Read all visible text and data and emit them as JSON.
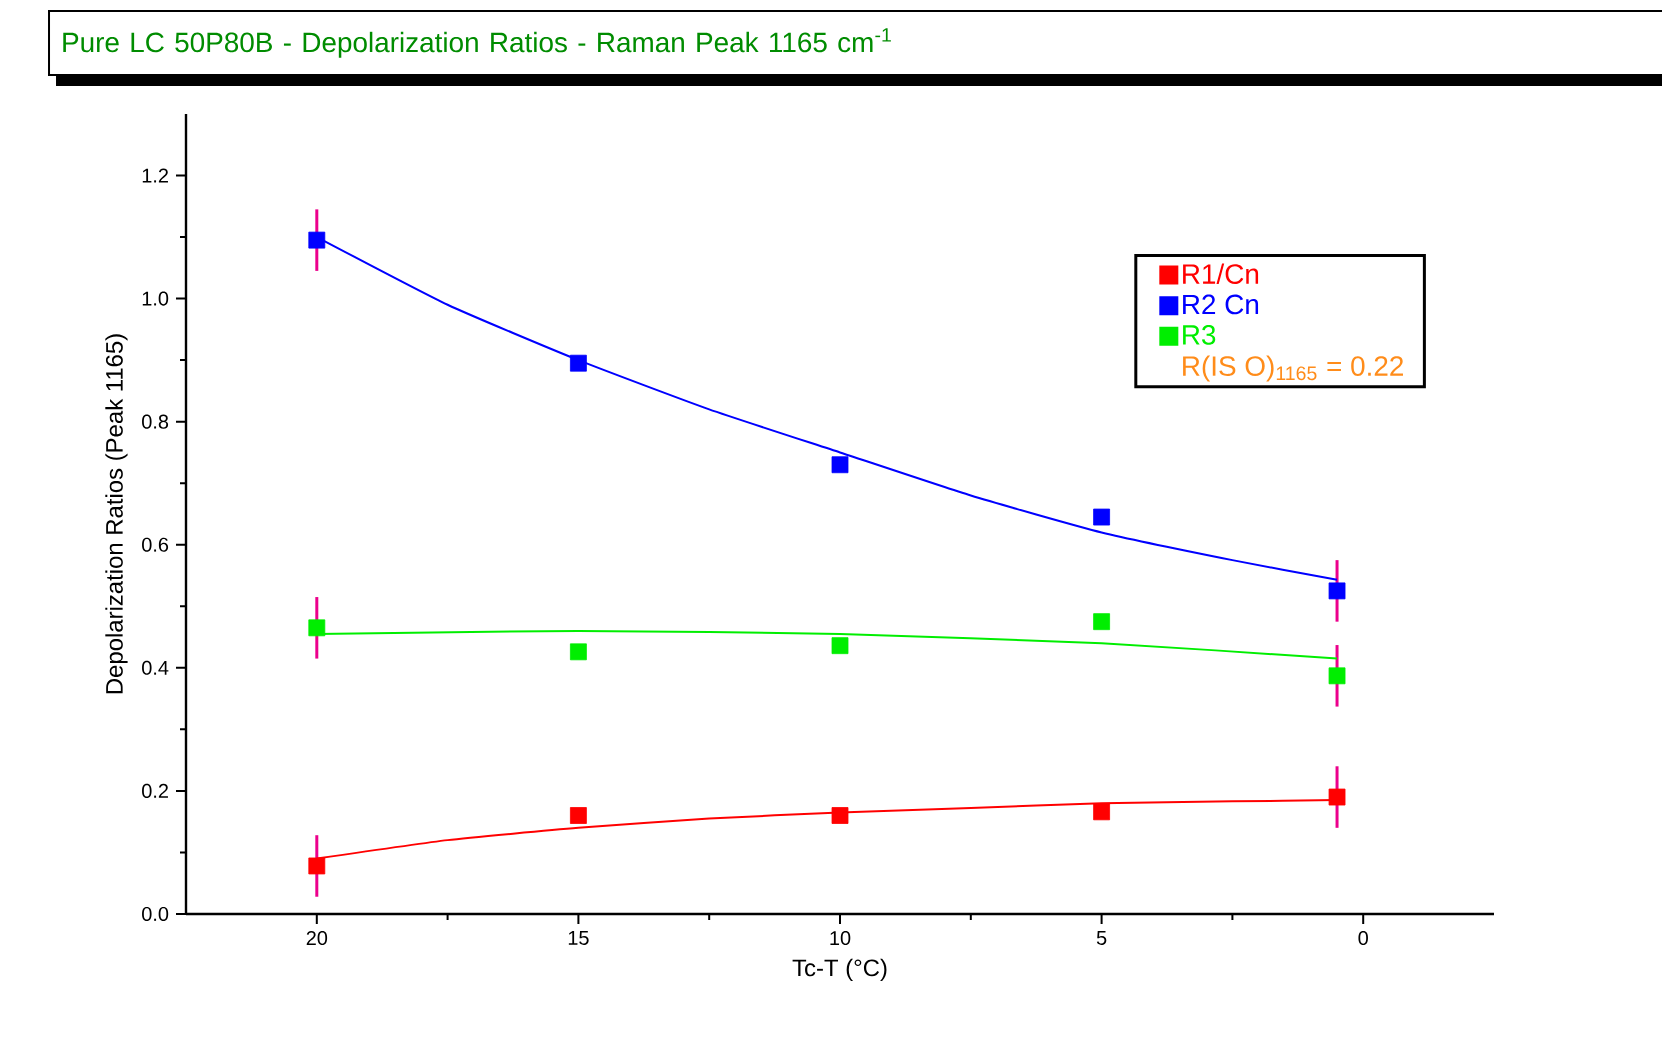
{
  "chart_data": {
    "type": "scatter",
    "title": "Pure LC 50P80B - Depolarization Ratios - Raman Peak 1165 cm$^{-1}$",
    "xlabel": "Tc-T (°C)",
    "ylabel": "Depolarization Ratios (Peak 1165)",
    "xlim": [
      22.5,
      -2.5
    ],
    "xticks": [
      20,
      15,
      10,
      5,
      0
    ],
    "ylim": [
      0,
      1.3
    ],
    "yticks": [
      {
        "value": 0,
        "label": "0.0"
      },
      {
        "value": 0.2,
        "label": "0.2"
      },
      {
        "value": 0.4,
        "label": "0.4"
      },
      {
        "value": 0.6,
        "label": "0.6"
      },
      {
        "value": 0.8,
        "label": "0.8"
      },
      {
        "value": 1.0,
        "label": "1.0"
      },
      {
        "value": 1.2,
        "label": "1.2"
      }
    ],
    "marker": "square",
    "legend": "top right",
    "grid": false,
    "annotations": [
      "R(IS O)$_{1165}$ = 0.22"
    ],
    "x": [
      20,
      15,
      10,
      5,
      0.5
    ],
    "series": [
      {
        "name": "R1/Cn",
        "color": "#ff0000",
        "values": [
          0.078,
          0.16,
          0.16,
          0.166,
          0.19
        ],
        "errors": [
          0.05,
          null,
          null,
          null,
          0.05
        ]
      },
      {
        "name": "R2 Cn",
        "color": "#0000ff",
        "values": [
          1.095,
          0.895,
          0.73,
          0.645,
          0.525
        ],
        "errors": [
          0.05,
          null,
          null,
          null,
          0.05
        ]
      },
      {
        "name": "R3",
        "color": "#00ee00",
        "values": [
          0.465,
          0.426,
          0.436,
          0.475,
          0.387
        ],
        "errors": [
          0.05,
          null,
          null,
          null,
          0.05
        ]
      },
      {
        "type": "line",
        "color": "#ff0000",
        "marker": "none",
        "x": [
          20,
          17.5,
          15,
          12.5,
          10,
          7.5,
          5,
          2.5,
          0.5
        ],
        "values": [
          0.09,
          0.12,
          0.14,
          0.155,
          0.165,
          0.172,
          0.18,
          0.183,
          0.185
        ]
      },
      {
        "type": "line",
        "color": "#0000ff",
        "marker": "none",
        "x": [
          20,
          17.5,
          15,
          12.5,
          10,
          7.5,
          5,
          2.5,
          0.5
        ],
        "values": [
          1.1,
          0.99,
          0.9,
          0.82,
          0.75,
          0.68,
          0.62,
          0.575,
          0.543
        ]
      },
      {
        "type": "line",
        "color": "#00ee00",
        "marker": "none",
        "x": [
          20,
          15,
          10,
          5,
          0.5
        ],
        "values": [
          0.455,
          0.46,
          0.455,
          0.44,
          0.415
        ]
      }
    ]
  }
}
